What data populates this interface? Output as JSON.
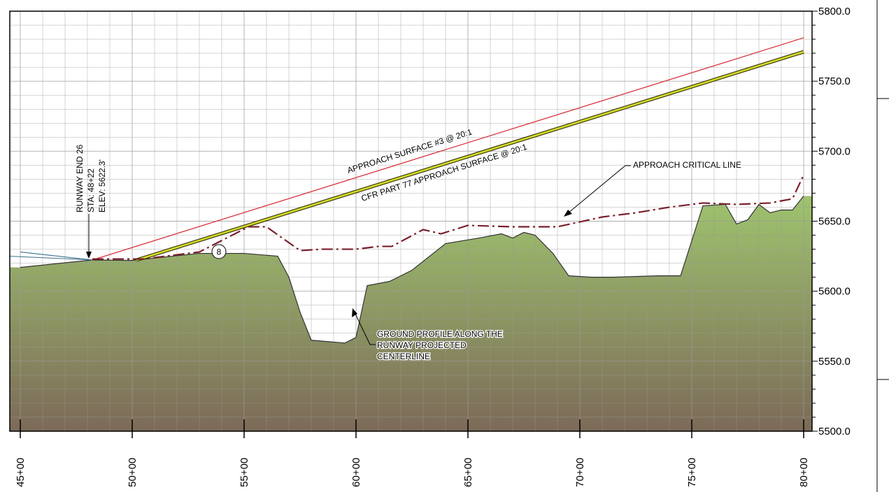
{
  "chart_data": {
    "type": "line",
    "xlim": [
      4500,
      8000
    ],
    "ylim": [
      5500,
      5800
    ],
    "x_ticks": [
      4500,
      5000,
      5500,
      6000,
      6500,
      7000,
      7500,
      8000
    ],
    "x_tick_labels": [
      "45+00",
      "50+00",
      "55+00",
      "60+00",
      "65+00",
      "70+00",
      "75+00",
      "80+00"
    ],
    "y_ticks": [
      5500,
      5550,
      5600,
      5650,
      5700,
      5750,
      5800
    ],
    "y_tick_labels": [
      "5500.0",
      "5550.0",
      "5600.0",
      "5650.0",
      "5700.0",
      "5750.0",
      "5800.0"
    ],
    "grid": true,
    "colors": {
      "approach_surface": "#d9343c",
      "cfr_surface": "#d6dd2a",
      "critical_line": "#7a1f2a",
      "ground_top": "#9ec46e",
      "ground_bottom": "#7c6a58",
      "runway_line": "#3a6f8f"
    },
    "series": [
      {
        "key": "approach_surface",
        "x": [
          4822,
          8000
        ],
        "y": [
          5622.3,
          5781
        ]
      },
      {
        "key": "cfr_surface",
        "x": [
          5020,
          8000
        ],
        "y": [
          5622.3,
          5771
        ]
      },
      {
        "key": "critical_line",
        "x": [
          4822,
          5050,
          5300,
          5520,
          5600,
          5750,
          5850,
          6000,
          6100,
          6160,
          6300,
          6380,
          6500,
          6700,
          6900,
          7100,
          7250,
          7400,
          7550,
          7700,
          7850,
          7950,
          8000
        ],
        "y": [
          5623,
          5623,
          5628,
          5646,
          5646,
          5629,
          5630,
          5630,
          5632,
          5632,
          5644,
          5641,
          5647,
          5646,
          5646,
          5653,
          5656,
          5660,
          5663,
          5662,
          5663,
          5666,
          5683
        ]
      },
      {
        "key": "ground_profile",
        "x": [
          4500,
          4822,
          5000,
          5300,
          5500,
          5650,
          5700,
          5750,
          5800,
          5950,
          6000,
          6050,
          6150,
          6250,
          6400,
          6550,
          6650,
          6700,
          6750,
          6800,
          6880,
          6950,
          7050,
          7100,
          7150,
          7350,
          7450,
          7550,
          7650,
          7700,
          7750,
          7800,
          7850,
          7900,
          7950,
          8000
        ],
        "y": [
          5617,
          5622.3,
          5622,
          5627,
          5627,
          5625,
          5610,
          5585,
          5565,
          5563,
          5567,
          5604,
          5607,
          5615,
          5634,
          5638,
          5641,
          5638,
          5642,
          5640,
          5627,
          5611,
          5610,
          5610,
          5610,
          5611,
          5611,
          5661,
          5662,
          5648,
          5651,
          5662,
          5656,
          5658,
          5658,
          5668
        ]
      },
      {
        "key": "runway",
        "x": [
          4500,
          4822
        ],
        "y": [
          5628,
          5622.3
        ]
      }
    ],
    "annotations": {
      "approach_surface": "APPROACH SURFACE #3 @ 20:1",
      "cfr_surface": "CFR PART 77 APPROACH SURFACE @ 20:1",
      "critical_line": "APPROACH CRITICAL LINE",
      "ground_line1": "GROUND PROFILE ALONG THE",
      "ground_line2": "RUNWAY PROJECTED",
      "ground_line3": "CENTERLINE",
      "runway_end": "RUNWAY END 26",
      "runway_sta": "STA: 48+22",
      "runway_elev": "ELEV: 5622.3'",
      "marker": "8"
    }
  }
}
